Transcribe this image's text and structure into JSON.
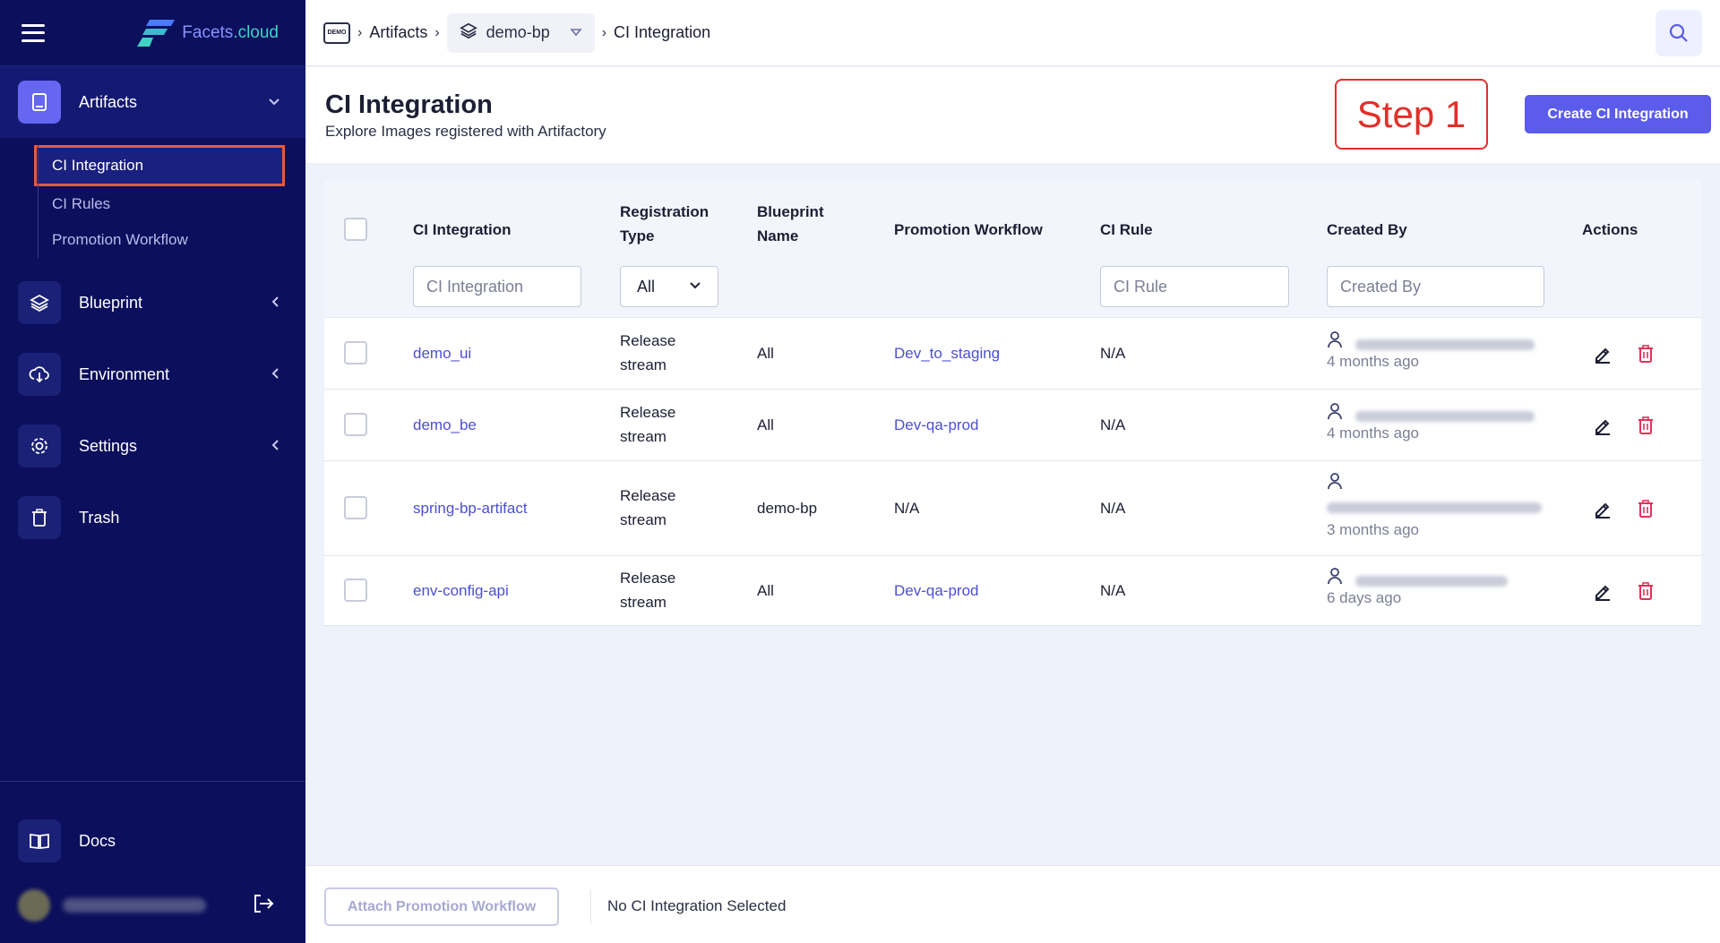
{
  "brand": {
    "name_main": "Facets",
    "name_suffix": ".cloud"
  },
  "sidebar": {
    "groups": [
      {
        "label": "Artifacts",
        "icon": "artifact-icon",
        "chevron": "⌄"
      },
      {
        "label": "Blueprint",
        "icon": "layers-icon",
        "chevron": "‹"
      },
      {
        "label": "Environment",
        "icon": "cloud-download-icon",
        "chevron": "‹"
      },
      {
        "label": "Settings",
        "icon": "gear-icon",
        "chevron": "‹"
      },
      {
        "label": "Trash",
        "icon": "trash-icon"
      }
    ],
    "sub_items": [
      "CI Integration",
      "CI Rules",
      "Promotion Workflow"
    ],
    "docs_label": "Docs"
  },
  "breadcrumb": {
    "home_badge": "DEMO",
    "artifacts": "Artifacts",
    "blueprint": "demo-bp",
    "current": "CI Integration"
  },
  "page": {
    "title": "CI Integration",
    "subtitle": "Explore Images registered with Artifactory",
    "step_label": "Step 1",
    "create_button": "Create CI Integration"
  },
  "table": {
    "headers": {
      "ci_integration": "CI Integration",
      "registration_type_1": "Registration",
      "registration_type_2": "Type",
      "blueprint_name_1": "Blueprint",
      "blueprint_name_2": "Name",
      "promotion_workflow": "Promotion Workflow",
      "ci_rule": "CI Rule",
      "created_by": "Created By",
      "actions": "Actions"
    },
    "filters": {
      "ci_integration_placeholder": "CI Integration",
      "registration_type_value": "All",
      "ci_rule_placeholder": "CI Rule",
      "created_by_placeholder": "Created By"
    },
    "rows": [
      {
        "name": "demo_ui",
        "reg_1": "Release",
        "reg_2": "stream",
        "blueprint": "All",
        "workflow": "Dev_to_staging",
        "workflow_link": true,
        "ci_rule": "N/A",
        "created_ago": "4 months ago"
      },
      {
        "name": "demo_be",
        "reg_1": "Release",
        "reg_2": "stream",
        "blueprint": "All",
        "workflow": "Dev-qa-prod",
        "workflow_link": true,
        "ci_rule": "N/A",
        "created_ago": "4 months ago"
      },
      {
        "name": "spring-bp-artifact",
        "reg_1": "Release",
        "reg_2": "stream",
        "blueprint": "demo-bp",
        "workflow": "N/A",
        "workflow_link": false,
        "ci_rule": "N/A",
        "created_ago": "3 months ago"
      },
      {
        "name": "env-config-api",
        "reg_1": "Release",
        "reg_2": "stream",
        "blueprint": "All",
        "workflow": "Dev-qa-prod",
        "workflow_link": true,
        "ci_rule": "N/A",
        "created_ago": "6 days ago"
      }
    ]
  },
  "footer": {
    "attach_button": "Attach Promotion Workflow",
    "status": "No CI Integration Selected"
  },
  "colors": {
    "sidebar_bg": "#0b0f5c",
    "accent": "#5b5bec",
    "link": "#4b4fd4",
    "delete": "#e0325a",
    "step_border": "#e0302a"
  }
}
